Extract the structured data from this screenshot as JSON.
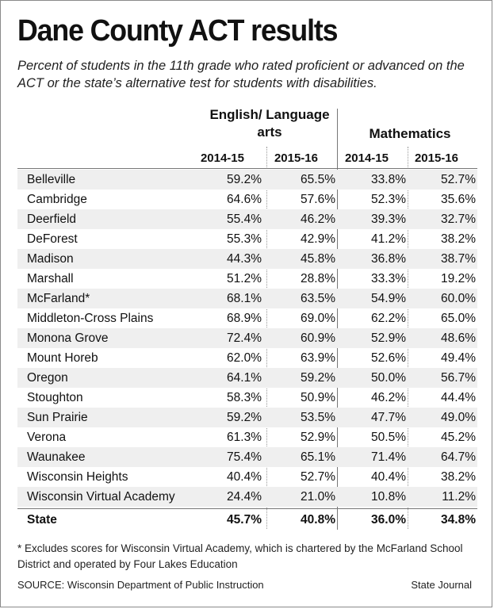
{
  "title": "Dane County ACT results",
  "subtitle": "Percent of students in the 11th grade who rated proficient or advanced on the ACT or the state’s alternative test for students with disabilities.",
  "groups": {
    "english": "English/ Language arts",
    "math": "Mathematics"
  },
  "years": [
    "2014-15",
    "2015-16",
    "2014-15",
    "2015-16"
  ],
  "rows": [
    {
      "name": "Belleville",
      "e1": "59.2%",
      "e2": "65.5%",
      "m1": "33.8%",
      "m2": "52.7%"
    },
    {
      "name": "Cambridge",
      "e1": "64.6%",
      "e2": "57.6%",
      "m1": "52.3%",
      "m2": "35.6%"
    },
    {
      "name": "Deerfield",
      "e1": "55.4%",
      "e2": "46.2%",
      "m1": "39.3%",
      "m2": "32.7%"
    },
    {
      "name": "DeForest",
      "e1": "55.3%",
      "e2": "42.9%",
      "m1": "41.2%",
      "m2": "38.2%"
    },
    {
      "name": "Madison",
      "e1": "44.3%",
      "e2": "45.8%",
      "m1": "36.8%",
      "m2": "38.7%"
    },
    {
      "name": "Marshall",
      "e1": "51.2%",
      "e2": "28.8%",
      "m1": "33.3%",
      "m2": "19.2%"
    },
    {
      "name": "McFarland*",
      "e1": "68.1%",
      "e2": "63.5%",
      "m1": "54.9%",
      "m2": "60.0%"
    },
    {
      "name": "Middleton-Cross Plains",
      "e1": "68.9%",
      "e2": "69.0%",
      "m1": "62.2%",
      "m2": "65.0%"
    },
    {
      "name": "Monona Grove",
      "e1": "72.4%",
      "e2": "60.9%",
      "m1": "52.9%",
      "m2": "48.6%"
    },
    {
      "name": "Mount Horeb",
      "e1": "62.0%",
      "e2": "63.9%",
      "m1": "52.6%",
      "m2": "49.4%"
    },
    {
      "name": "Oregon",
      "e1": "64.1%",
      "e2": "59.2%",
      "m1": "50.0%",
      "m2": "56.7%"
    },
    {
      "name": "Stoughton",
      "e1": "58.3%",
      "e2": "50.9%",
      "m1": "46.2%",
      "m2": "44.4%"
    },
    {
      "name": "Sun Prairie",
      "e1": "59.2%",
      "e2": "53.5%",
      "m1": "47.7%",
      "m2": "49.0%"
    },
    {
      "name": "Verona",
      "e1": "61.3%",
      "e2": "52.9%",
      "m1": "50.5%",
      "m2": "45.2%"
    },
    {
      "name": "Waunakee",
      "e1": "75.4%",
      "e2": "65.1%",
      "m1": "71.4%",
      "m2": "64.7%"
    },
    {
      "name": "Wisconsin Heights",
      "e1": "40.4%",
      "e2": "52.7%",
      "m1": "40.4%",
      "m2": "38.2%"
    },
    {
      "name": "Wisconsin Virtual Academy",
      "e1": "24.4%",
      "e2": "21.0%",
      "m1": "10.8%",
      "m2": "11.2%"
    }
  ],
  "state": {
    "name": "State",
    "e1": "45.7%",
    "e2": "40.8%",
    "m1": "36.0%",
    "m2": "34.8%"
  },
  "footnote": "* Excludes scores for Wisconsin Virtual Academy, which is chartered by the McFarland School District and operated by Four Lakes Education",
  "source": "SOURCE: Wisconsin Department of Public Instruction",
  "credit": "State Journal"
}
